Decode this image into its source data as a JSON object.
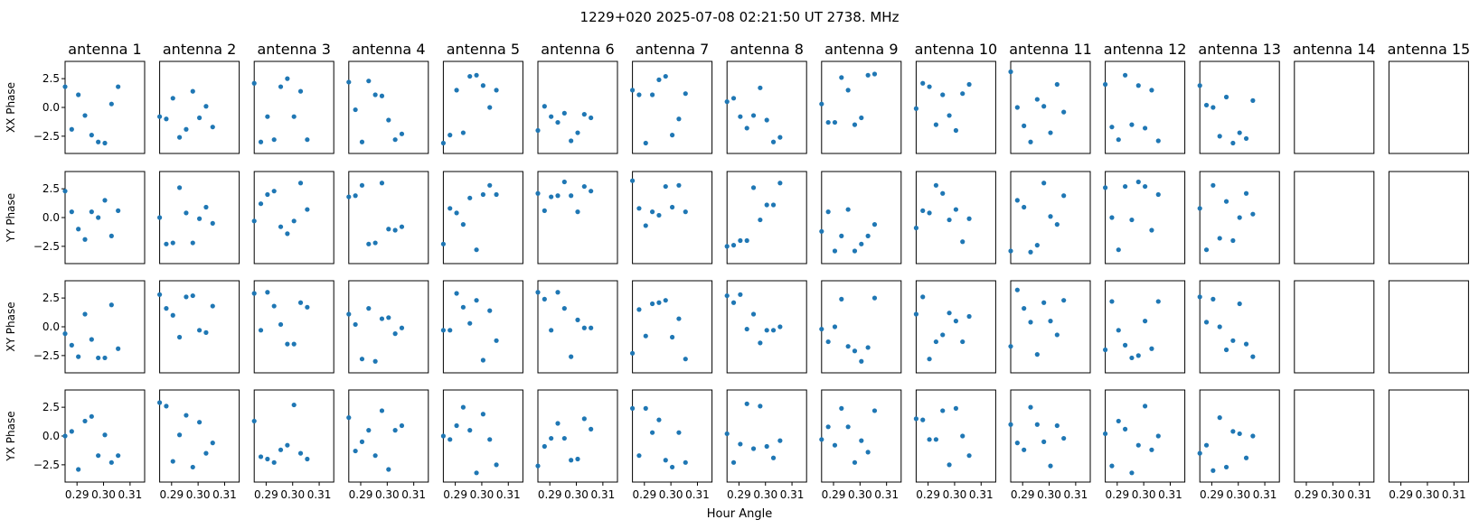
{
  "figure": {
    "suptitle": "1229+020  2025-07-08 02:21:50 UT  2738. MHz",
    "xlabel": "Hour Angle"
  },
  "chart_data": {
    "type": "scatter",
    "grid": false,
    "marker_color": "#1f77b4",
    "x": [
      0.2855,
      0.288,
      0.2905,
      0.293,
      0.2955,
      0.298,
      0.3005,
      0.303,
      0.3055,
      0.308,
      0.3105,
      0.313,
      0.3155
    ],
    "xlim": [
      0.2855,
      0.3155
    ],
    "xticks": [
      0.29,
      0.3,
      0.31
    ],
    "xtick_labels": [
      "0.29",
      "0.30",
      "0.31"
    ],
    "ylim": [
      -4.0,
      4.0
    ],
    "yticks": [
      -2.5,
      0.0,
      2.5
    ],
    "ytick_labels": [
      "−2.5",
      "0.0",
      "2.5"
    ],
    "row_labels": [
      "XX Phase",
      "YY Phase",
      "XY Phase",
      "YX Phase"
    ],
    "antennas": [
      "antenna 1",
      "antenna 2",
      "antenna 3",
      "antenna 4",
      "antenna 5",
      "antenna 6",
      "antenna 7",
      "antenna 8",
      "antenna 9",
      "antenna 10",
      "antenna 11",
      "antenna 12",
      "antenna 13",
      "antenna 14",
      "antenna 15"
    ],
    "x_indices": [
      0,
      2,
      4,
      6,
      8,
      10,
      12
    ],
    "panels": [
      [
        [
          1.8,
          -1.9,
          1.1,
          -0.7,
          -2.4,
          -3.0,
          -3.1,
          0.3,
          1.8
        ],
        [
          -0.8,
          -1.0,
          0.8,
          -2.6,
          -1.9,
          1.4,
          -0.9,
          0.1,
          -1.7
        ],
        [
          2.1,
          -3.0,
          -0.8,
          -2.8,
          1.8,
          2.5,
          -0.8,
          1.4,
          -2.8
        ],
        [
          2.2,
          -0.2,
          -3.0,
          2.3,
          1.1,
          1.0,
          -1.1,
          -2.8,
          -2.3
        ],
        [
          -3.1,
          -2.4,
          1.5,
          -2.2,
          2.7,
          2.8,
          1.9,
          0.0,
          1.5
        ],
        [
          -2.0,
          0.1,
          -0.8,
          -1.3,
          -0.5,
          -2.9,
          -2.2,
          -0.6,
          -0.9
        ],
        [
          1.5,
          1.1,
          -3.1,
          1.1,
          2.4,
          2.7,
          -2.4,
          -1.0,
          1.2
        ],
        [
          0.5,
          0.8,
          -0.8,
          -1.8,
          -0.7,
          1.7,
          -1.1,
          -3.0,
          -2.6
        ],
        [
          0.3,
          -1.3,
          -1.3,
          2.6,
          1.5,
          -1.5,
          -0.9,
          2.8,
          2.9
        ],
        [
          -0.1,
          2.1,
          1.8,
          -1.5,
          1.1,
          -0.7,
          -2.0,
          1.2,
          2.0
        ],
        [
          3.1,
          0.0,
          -1.6,
          -3.0,
          0.7,
          0.1,
          -2.2,
          2.0,
          -0.4
        ],
        [
          2.0,
          -1.7,
          -2.8,
          2.8,
          -1.5,
          1.9,
          -1.8,
          1.5,
          -2.9
        ],
        [
          1.9,
          0.2,
          0.0,
          -2.5,
          0.9,
          -3.1,
          -2.2,
          -2.7,
          0.6
        ],
        [],
        []
      ],
      [
        [
          2.3,
          0.5,
          -1.0,
          -1.9,
          0.5,
          0.0,
          1.5,
          -1.6,
          0.6
        ],
        [
          0.0,
          -2.3,
          -2.2,
          2.6,
          0.4,
          -2.2,
          -0.1,
          0.9,
          -0.5
        ],
        [
          -0.3,
          1.2,
          2.0,
          2.3,
          -0.8,
          -1.4,
          -0.3,
          3.0,
          0.7
        ],
        [
          1.8,
          1.9,
          2.8,
          -2.3,
          -2.2,
          3.0,
          -1.0,
          -1.1,
          -0.8
        ],
        [
          -2.3,
          0.8,
          0.4,
          -0.6,
          1.7,
          -2.8,
          2.0,
          2.8,
          2.0
        ],
        [
          2.1,
          0.6,
          1.8,
          1.9,
          3.1,
          1.9,
          0.5,
          2.7,
          2.3
        ],
        [
          3.2,
          0.8,
          -0.7,
          0.5,
          0.2,
          2.7,
          0.9,
          2.8,
          0.5
        ],
        [
          -2.5,
          -2.4,
          -2.0,
          -2.0,
          2.6,
          -0.2,
          1.1,
          1.1,
          3.0
        ],
        [
          -1.2,
          0.5,
          -2.9,
          -1.6,
          0.7,
          -2.9,
          -2.3,
          -1.6,
          -0.6
        ],
        [
          -0.9,
          0.6,
          0.4,
          2.8,
          2.1,
          -0.2,
          0.7,
          -2.1,
          -0.1
        ],
        [
          -2.9,
          1.5,
          0.9,
          -3.0,
          -2.4,
          3.0,
          0.1,
          -0.6,
          1.9
        ],
        [
          2.6,
          0.0,
          -2.8,
          2.7,
          -0.2,
          3.1,
          2.7,
          -1.1,
          2.0
        ],
        [
          0.8,
          -2.8,
          2.8,
          -1.8,
          1.4,
          -2.0,
          0.0,
          2.1,
          0.3
        ],
        [],
        []
      ],
      [
        [
          -0.6,
          -1.6,
          -2.6,
          1.1,
          -1.1,
          -2.7,
          -2.7,
          1.9,
          -1.9
        ],
        [
          2.8,
          1.6,
          1.0,
          -0.9,
          2.6,
          2.7,
          -0.3,
          -0.5,
          1.8
        ],
        [
          2.9,
          -0.3,
          3.0,
          1.8,
          0.2,
          -1.5,
          -1.5,
          2.1,
          1.7
        ],
        [
          1.1,
          0.2,
          -2.8,
          1.6,
          -3.0,
          0.7,
          0.8,
          -0.6,
          -0.1
        ],
        [
          -0.3,
          -0.3,
          2.9,
          1.7,
          0.3,
          2.3,
          -2.9,
          1.4,
          -1.2
        ],
        [
          3.0,
          2.4,
          -0.3,
          3.0,
          1.6,
          -2.6,
          0.6,
          -0.1,
          -0.1
        ],
        [
          -2.3,
          1.5,
          -0.8,
          2.0,
          2.1,
          2.3,
          -0.9,
          0.7,
          -2.8
        ],
        [
          2.7,
          2.1,
          2.8,
          -0.2,
          1.1,
          -1.4,
          -0.3,
          -0.3,
          0.0
        ],
        [
          -0.2,
          -1.3,
          0.0,
          2.4,
          -1.7,
          -2.1,
          -3.0,
          -1.8,
          2.5
        ],
        [
          1.1,
          2.6,
          -2.8,
          -1.3,
          -0.7,
          1.2,
          0.5,
          -1.3,
          0.9
        ],
        [
          -1.7,
          3.2,
          1.6,
          0.4,
          -2.4,
          2.1,
          0.5,
          -0.7,
          2.3
        ],
        [
          -2.0,
          2.2,
          -0.3,
          -1.6,
          -2.7,
          -2.5,
          0.5,
          -1.9,
          2.2
        ],
        [
          2.6,
          0.4,
          2.4,
          0.0,
          -2.0,
          -1.2,
          2.0,
          -1.5,
          -2.6
        ],
        [],
        []
      ],
      [
        [
          0.0,
          0.4,
          -2.9,
          1.3,
          1.7,
          -1.7,
          0.1,
          -2.3,
          -1.7
        ],
        [
          2.9,
          2.6,
          -2.2,
          0.1,
          1.8,
          -2.7,
          1.2,
          -1.5,
          -0.6
        ],
        [
          1.3,
          -1.8,
          -2.0,
          -2.3,
          -1.2,
          -0.8,
          2.7,
          -1.5,
          -2.0
        ],
        [
          1.6,
          -1.3,
          -0.5,
          0.5,
          -1.7,
          2.2,
          -2.9,
          0.5,
          0.9
        ],
        [
          0.0,
          -0.3,
          0.9,
          2.5,
          0.5,
          -3.2,
          1.9,
          -0.3,
          -2.5
        ],
        [
          -2.6,
          -0.9,
          -0.2,
          1.1,
          -0.2,
          -2.1,
          -2.0,
          1.5,
          0.6
        ],
        [
          2.4,
          -1.7,
          2.4,
          0.3,
          1.4,
          -2.1,
          -2.7,
          0.3,
          -2.3
        ],
        [
          0.2,
          -2.3,
          -0.7,
          2.8,
          -1.1,
          2.6,
          -0.9,
          -1.9,
          -0.4
        ],
        [
          -0.3,
          0.8,
          -0.8,
          2.4,
          0.8,
          -2.3,
          -0.4,
          -1.4,
          2.2
        ],
        [
          1.5,
          1.4,
          -0.3,
          -0.3,
          2.2,
          -2.5,
          2.4,
          0.0,
          -1.7
        ],
        [
          1.0,
          -0.6,
          -1.2,
          2.5,
          1.0,
          -0.5,
          -2.6,
          0.9,
          -0.2
        ],
        [
          0.2,
          -2.6,
          1.3,
          0.6,
          -3.2,
          -0.8,
          2.6,
          -1.2,
          0.0
        ],
        [
          -1.5,
          -0.8,
          -3.0,
          1.6,
          -2.7,
          0.4,
          0.2,
          -1.9,
          0.0
        ],
        [],
        []
      ]
    ]
  }
}
